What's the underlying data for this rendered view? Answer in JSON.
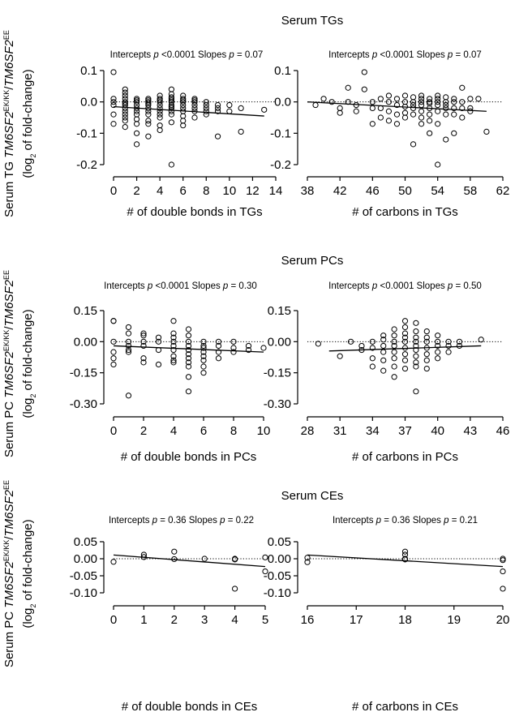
{
  "chart_data": [
    {
      "type": "scatter",
      "row_title": "Serum TGs",
      "ylabel_main": [
        "Serum TG ",
        "TM6SF2",
        "EK/KK",
        "/",
        "TM6SF2",
        "EE"
      ],
      "ylabel_sub": [
        "(log",
        "2",
        " of fold-change)"
      ],
      "annotation": [
        "Intercepts ",
        "p",
        " <0.0001  Slopes ",
        "p",
        " = 0.07"
      ],
      "xlabel": "# of double bonds in TGs",
      "xlim": [
        0,
        14
      ],
      "ylim": [
        -0.2,
        0.1
      ],
      "xticks": [
        0,
        2,
        4,
        6,
        8,
        10,
        12,
        14
      ],
      "yticks": [
        0.1,
        0.0,
        -0.1,
        -0.2
      ],
      "ytick_labels": [
        "0.1",
        "0.0",
        "-0.1",
        "-0.2"
      ],
      "reference_line_y": 0,
      "regression": {
        "x": [
          0,
          13
        ],
        "y": [
          -0.015,
          -0.045
        ]
      },
      "x": [
        0,
        0,
        0,
        0,
        0,
        0,
        1,
        1,
        1,
        1,
        1,
        1,
        1,
        1,
        1,
        1,
        1,
        1,
        1,
        2,
        2,
        2,
        2,
        2,
        2,
        2,
        2,
        2,
        2,
        2,
        3,
        3,
        3,
        3,
        3,
        3,
        3,
        3,
        3,
        3,
        3,
        4,
        4,
        4,
        4,
        4,
        4,
        4,
        4,
        4,
        4,
        4,
        5,
        5,
        5,
        5,
        5,
        5,
        5,
        5,
        5,
        5,
        5,
        5,
        5,
        6,
        6,
        6,
        6,
        6,
        6,
        6,
        6,
        6,
        6,
        7,
        7,
        7,
        7,
        7,
        7,
        7,
        8,
        8,
        8,
        8,
        8,
        9,
        9,
        9,
        9,
        10,
        10,
        11,
        11,
        13
      ],
      "y": [
        0.095,
        0.01,
        0.0,
        -0.01,
        -0.04,
        -0.07,
        0.04,
        0.03,
        0.02,
        0.01,
        0.0,
        -0.005,
        -0.01,
        -0.02,
        -0.03,
        -0.04,
        -0.05,
        -0.06,
        -0.08,
        0.01,
        0.005,
        0.0,
        -0.01,
        -0.02,
        -0.03,
        -0.04,
        -0.055,
        -0.07,
        -0.1,
        -0.135,
        0.01,
        0.005,
        0.0,
        -0.005,
        -0.01,
        -0.02,
        -0.03,
        -0.04,
        -0.06,
        -0.07,
        -0.11,
        0.02,
        0.01,
        0.005,
        0.0,
        -0.01,
        -0.02,
        -0.03,
        -0.04,
        -0.05,
        -0.075,
        -0.09,
        0.04,
        0.025,
        0.015,
        0.01,
        0.005,
        0.0,
        -0.01,
        -0.015,
        -0.02,
        -0.03,
        -0.04,
        -0.065,
        -0.2,
        0.02,
        0.01,
        0.005,
        0.0,
        -0.01,
        -0.02,
        -0.03,
        -0.045,
        -0.06,
        -0.075,
        0.01,
        0.005,
        0.0,
        -0.01,
        -0.02,
        -0.03,
        -0.05,
        0.0,
        -0.01,
        -0.02,
        -0.03,
        -0.04,
        -0.01,
        -0.02,
        -0.03,
        -0.11,
        -0.01,
        -0.03,
        -0.02,
        -0.095,
        -0.025
      ]
    },
    {
      "type": "scatter",
      "annotation": [
        "Intercepts ",
        "p",
        " <0.0001  Slopes ",
        "p",
        " = 0.07"
      ],
      "xlabel": "# of carbons in TGs",
      "xlim": [
        38,
        62
      ],
      "ylim": [
        -0.2,
        0.1
      ],
      "xticks": [
        38,
        42,
        46,
        50,
        54,
        58,
        62
      ],
      "yticks": [
        0.1,
        0.0,
        -0.1,
        -0.2
      ],
      "ytick_labels": [
        "0.1",
        "0.0",
        "-0.1",
        "-0.2"
      ],
      "reference_line_y": 0,
      "regression": {
        "x": [
          38,
          60
        ],
        "y": [
          0.0,
          -0.03
        ]
      },
      "x": [
        39,
        40,
        41,
        42,
        42,
        43,
        43,
        44,
        44,
        45,
        45,
        46,
        46,
        46,
        47,
        47,
        47,
        48,
        48,
        48,
        48,
        49,
        49,
        49,
        49,
        50,
        50,
        50,
        50,
        50,
        51,
        51,
        51,
        51,
        51,
        51,
        52,
        52,
        52,
        52,
        52,
        52,
        52,
        53,
        53,
        53,
        53,
        53,
        53,
        53,
        54,
        54,
        54,
        54,
        54,
        54,
        54,
        55,
        55,
        55,
        55,
        55,
        55,
        56,
        56,
        56,
        56,
        56,
        57,
        57,
        57,
        57,
        58,
        58,
        58,
        59,
        60
      ],
      "y": [
        -0.01,
        0.01,
        0.0,
        -0.02,
        -0.035,
        0.045,
        0.0,
        -0.01,
        -0.03,
        0.095,
        0.04,
        0.0,
        -0.02,
        -0.07,
        0.01,
        -0.02,
        -0.05,
        0.02,
        0.0,
        -0.03,
        -0.06,
        0.01,
        -0.01,
        -0.04,
        -0.07,
        0.02,
        0.0,
        -0.015,
        -0.035,
        -0.05,
        0.015,
        0.0,
        -0.01,
        -0.02,
        -0.04,
        -0.135,
        0.02,
        0.01,
        0.0,
        -0.01,
        -0.03,
        -0.05,
        -0.07,
        0.01,
        0.0,
        -0.005,
        -0.02,
        -0.04,
        -0.06,
        -0.1,
        0.02,
        0.01,
        0.0,
        -0.01,
        -0.03,
        -0.07,
        -0.2,
        0.015,
        0.0,
        -0.01,
        -0.02,
        -0.04,
        -0.12,
        0.01,
        0.0,
        -0.02,
        -0.04,
        -0.1,
        0.045,
        0.0,
        -0.02,
        -0.05,
        0.01,
        -0.02,
        -0.03,
        0.01,
        -0.095
      ]
    },
    {
      "type": "scatter",
      "row_title": "Serum PCs",
      "ylabel_main": [
        "Serum PC ",
        "TM6SF2",
        "EK/KK",
        "/",
        "TM6SF2",
        "EE"
      ],
      "ylabel_sub": [
        "(log",
        "2",
        " of fold-change)"
      ],
      "annotation": [
        "Intercepts ",
        "p",
        " <0.0001  Slopes ",
        "p",
        " = 0.30"
      ],
      "xlabel": "# of double bonds in PCs",
      "xlim": [
        0,
        10
      ],
      "ylim": [
        -0.3,
        0.15
      ],
      "xticks": [
        0,
        2,
        4,
        6,
        8,
        10
      ],
      "yticks": [
        0.15,
        0.0,
        -0.15,
        -0.3
      ],
      "ytick_labels": [
        "0.15",
        "0.00",
        "-0.15",
        "-0.30"
      ],
      "reference_line_y": 0,
      "regression": {
        "x": [
          0,
          10
        ],
        "y": [
          -0.02,
          -0.05
        ]
      },
      "x": [
        0,
        0,
        0,
        0,
        0,
        0,
        1,
        1,
        1,
        1,
        1,
        1,
        1,
        2,
        2,
        2,
        2,
        2,
        2,
        3,
        3,
        3,
        3,
        4,
        4,
        4,
        4,
        4,
        4,
        4,
        4,
        4,
        5,
        5,
        5,
        5,
        5,
        5,
        5,
        5,
        5,
        5,
        5,
        6,
        6,
        6,
        6,
        6,
        6,
        6,
        6,
        7,
        7,
        7,
        7,
        8,
        8,
        8,
        9,
        9,
        10
      ],
      "y": [
        0.1,
        0.1,
        0.0,
        -0.05,
        -0.08,
        -0.11,
        0.07,
        0.04,
        0.0,
        -0.02,
        -0.04,
        -0.05,
        -0.26,
        0.04,
        0.03,
        0.0,
        -0.02,
        -0.08,
        -0.1,
        0.02,
        0.0,
        -0.04,
        -0.11,
        0.1,
        0.04,
        0.02,
        0.0,
        -0.02,
        -0.04,
        -0.07,
        -0.09,
        -0.1,
        0.06,
        0.03,
        0.0,
        -0.02,
        -0.04,
        -0.06,
        -0.08,
        -0.1,
        -0.12,
        -0.17,
        -0.24,
        0.0,
        -0.02,
        -0.03,
        -0.05,
        -0.07,
        -0.09,
        -0.12,
        -0.15,
        0.0,
        -0.02,
        -0.05,
        -0.08,
        0.0,
        -0.03,
        -0.05,
        -0.02,
        -0.04,
        -0.03
      ]
    },
    {
      "type": "scatter",
      "annotation": [
        "Intercepts ",
        "p",
        " <0.0001  Slopes ",
        "p",
        " = 0.50"
      ],
      "xlabel": "# of carbons in PCs",
      "xlim": [
        28,
        46
      ],
      "ylim": [
        -0.3,
        0.15
      ],
      "xticks": [
        28,
        31,
        34,
        37,
        40,
        43,
        46
      ],
      "yticks": [
        0.15,
        0.0,
        -0.15,
        -0.3
      ],
      "ytick_labels": [
        "0.15",
        "0.00",
        "-0.15",
        "-0.30"
      ],
      "reference_line_y": 0,
      "regression": {
        "x": [
          30,
          44
        ],
        "y": [
          -0.045,
          -0.02
        ]
      },
      "x": [
        29,
        31,
        32,
        33,
        33,
        34,
        34,
        34,
        34,
        35,
        35,
        35,
        35,
        35,
        35,
        36,
        36,
        36,
        36,
        36,
        36,
        36,
        36,
        37,
        37,
        37,
        37,
        37,
        37,
        37,
        37,
        37,
        38,
        38,
        38,
        38,
        38,
        38,
        38,
        38,
        38,
        38,
        39,
        39,
        39,
        39,
        39,
        39,
        39,
        40,
        40,
        40,
        40,
        40,
        41,
        41,
        41,
        42,
        42,
        44
      ],
      "y": [
        -0.01,
        -0.07,
        0.0,
        -0.02,
        -0.04,
        0.0,
        -0.03,
        -0.08,
        -0.12,
        0.03,
        0.01,
        -0.02,
        -0.05,
        -0.09,
        -0.14,
        0.06,
        0.03,
        0.0,
        -0.02,
        -0.05,
        -0.08,
        -0.12,
        -0.17,
        0.1,
        0.07,
        0.04,
        0.02,
        0.0,
        -0.03,
        -0.06,
        -0.09,
        -0.13,
        0.09,
        0.05,
        0.02,
        0.0,
        -0.02,
        -0.04,
        -0.07,
        -0.1,
        -0.12,
        -0.24,
        0.05,
        0.02,
        0.0,
        -0.03,
        -0.06,
        -0.09,
        -0.13,
        0.03,
        0.0,
        -0.02,
        -0.05,
        -0.08,
        0.0,
        -0.02,
        -0.05,
        0.0,
        -0.02,
        0.01
      ]
    },
    {
      "type": "scatter",
      "row_title": "Serum CEs",
      "ylabel_main": [
        "Serum PC ",
        "TM6SF2",
        "EK/KK",
        "/",
        "TM6SF2",
        "EE"
      ],
      "ylabel_sub": [
        "(log",
        "2",
        " of fold-change)"
      ],
      "annotation": [
        "Intercepts ",
        "p",
        " = 0.36   Slopes ",
        "p",
        " = 0.22"
      ],
      "xlabel": "# of double bonds in CEs",
      "xlim": [
        0,
        5
      ],
      "ylim": [
        -0.1,
        0.05
      ],
      "xticks": [
        0,
        1,
        2,
        3,
        4,
        5
      ],
      "yticks": [
        0.05,
        0.0,
        -0.05,
        -0.1
      ],
      "ytick_labels": [
        "0.05",
        "0.00",
        "-0.05",
        "-0.10"
      ],
      "reference_line_y": 0,
      "regression": {
        "x": [
          0,
          5
        ],
        "y": [
          0.011,
          -0.023
        ]
      },
      "x": [
        0,
        1,
        1,
        2,
        2,
        3,
        4,
        4,
        4,
        5,
        5
      ],
      "y": [
        -0.009,
        0.012,
        0.005,
        0.021,
        -0.001,
        0.0,
        0.0,
        -0.002,
        -0.088,
        0.004,
        -0.037
      ]
    },
    {
      "type": "scatter",
      "annotation": [
        "Intercepts ",
        "p",
        " = 0.36   Slopes ",
        "p",
        " = 0.21"
      ],
      "xlabel": "# of carbons in CEs",
      "xlim": [
        16,
        20
      ],
      "ylim": [
        -0.1,
        0.05
      ],
      "xticks": [
        16,
        17,
        18,
        19,
        20
      ],
      "yticks": [
        0.05,
        0.0,
        -0.05,
        -0.1
      ],
      "ytick_labels": [
        "0.05",
        "0.00",
        "-0.05",
        "-0.10"
      ],
      "reference_line_y": 0,
      "regression": {
        "x": [
          16,
          20
        ],
        "y": [
          0.011,
          -0.023
        ]
      },
      "x": [
        16,
        16,
        18,
        18,
        18,
        18,
        20,
        20,
        20,
        20
      ],
      "y": [
        0.003,
        -0.01,
        0.021,
        0.012,
        0.0,
        -0.002,
        0.0,
        -0.004,
        -0.037,
        -0.088
      ]
    }
  ]
}
